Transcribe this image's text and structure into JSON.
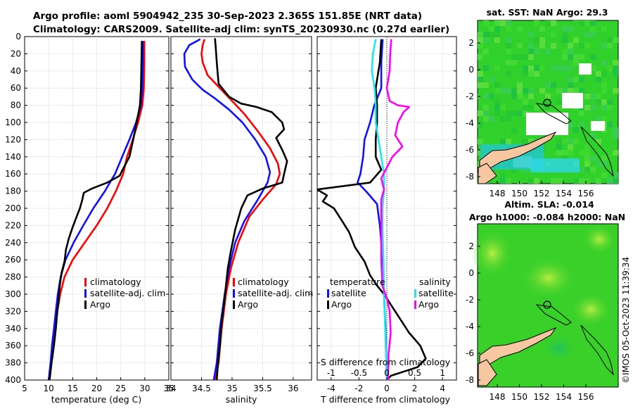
{
  "header": {
    "title_line1": "Argo profile: aoml 5904942_235 30-Sep-2023 2.365S 151.85E (NRT data)",
    "title_line2": "Climatology: CARS2009. Satellite-adj clim: synTS_20230930.nc (0.27d earlier)"
  },
  "colors": {
    "climatology": "#ff0000",
    "satellite": "#1010ff",
    "argo": "#000000",
    "sat_sal": "#20e8f0",
    "argo_sal": "#ff00ff"
  },
  "chart_data": [
    {
      "id": "temperature",
      "type": "line",
      "xlabel": "temperature (deg C)",
      "ylabel": "",
      "xlim": [
        5,
        35
      ],
      "ylim": [
        400,
        0
      ],
      "xticks": [
        5,
        10,
        15,
        20,
        25,
        30,
        35
      ],
      "xtick_labels": [
        "5",
        "10",
        "15",
        "20",
        "25",
        "30",
        "35"
      ],
      "yticks": [
        0,
        20,
        40,
        60,
        80,
        100,
        120,
        140,
        160,
        180,
        200,
        220,
        240,
        260,
        280,
        300,
        320,
        340,
        360,
        380,
        400
      ],
      "ytick_labels": [
        "0",
        "20",
        "40",
        "60",
        "80",
        "100",
        "120",
        "140",
        "160",
        "180",
        "200",
        "220",
        "240",
        "260",
        "280",
        "300",
        "320",
        "340",
        "360",
        "380",
        "400"
      ],
      "grid": true,
      "legend": {
        "position": "bottom-right",
        "entries": [
          "climatology",
          "satellite-adj. clim",
          "Argo"
        ]
      },
      "series": [
        {
          "name": "climatology",
          "color": "#ff0000",
          "points": [
            [
              29.9,
              5
            ],
            [
              29.9,
              30
            ],
            [
              29.8,
              60
            ],
            [
              29.5,
              80
            ],
            [
              28.6,
              100
            ],
            [
              27.5,
              120
            ],
            [
              26.3,
              140
            ],
            [
              25.5,
              160
            ],
            [
              24.0,
              180
            ],
            [
              22.2,
              200
            ],
            [
              20.0,
              220
            ],
            [
              17.5,
              240
            ],
            [
              15.0,
              260
            ],
            [
              13.3,
              280
            ],
            [
              12.4,
              300
            ],
            [
              11.8,
              320
            ],
            [
              11.3,
              340
            ],
            [
              10.9,
              360
            ],
            [
              10.5,
              380
            ],
            [
              10.0,
              400
            ]
          ]
        },
        {
          "name": "satellite-adj. clim",
          "color": "#1010ff",
          "points": [
            [
              29.6,
              5
            ],
            [
              29.6,
              30
            ],
            [
              29.5,
              60
            ],
            [
              29.2,
              80
            ],
            [
              28.2,
              100
            ],
            [
              26.8,
              120
            ],
            [
              25.3,
              140
            ],
            [
              23.8,
              160
            ],
            [
              21.7,
              180
            ],
            [
              19.3,
              200
            ],
            [
              17.2,
              220
            ],
            [
              15.2,
              240
            ],
            [
              13.5,
              260
            ],
            [
              12.5,
              280
            ],
            [
              11.9,
              300
            ],
            [
              11.5,
              320
            ],
            [
              11.1,
              340
            ],
            [
              10.7,
              360
            ],
            [
              10.4,
              380
            ],
            [
              10.0,
              400
            ]
          ]
        },
        {
          "name": "Argo",
          "color": "#000000",
          "points": [
            [
              29.4,
              5
            ],
            [
              29.3,
              30
            ],
            [
              29.2,
              60
            ],
            [
              29.0,
              80
            ],
            [
              28.3,
              100
            ],
            [
              27.6,
              120
            ],
            [
              26.8,
              140
            ],
            [
              25.4,
              155
            ],
            [
              24.8,
              162
            ],
            [
              22.2,
              170
            ],
            [
              19.0,
              177
            ],
            [
              17.3,
              182
            ],
            [
              17.0,
              190
            ],
            [
              16.5,
              200
            ],
            [
              15.8,
              210
            ],
            [
              15.0,
              222
            ],
            [
              14.2,
              235
            ],
            [
              13.6,
              248
            ],
            [
              13.3,
              262
            ],
            [
              12.7,
              275
            ],
            [
              12.3,
              290
            ],
            [
              12.1,
              305
            ],
            [
              11.8,
              320
            ],
            [
              11.5,
              340
            ],
            [
              11.1,
              360
            ],
            [
              10.6,
              380
            ],
            [
              10.2,
              400
            ]
          ]
        }
      ]
    },
    {
      "id": "salinity",
      "type": "line",
      "xlabel": "salinity",
      "xlim": [
        34,
        36.3
      ],
      "ylim": [
        400,
        0
      ],
      "xticks": [
        34,
        34.5,
        35,
        35.5,
        36
      ],
      "xtick_labels": [
        "34",
        "34.5",
        "35",
        "35.5",
        "36"
      ],
      "grid": true,
      "legend": {
        "position": "bottom-right",
        "entries": [
          "climatology",
          "satellite-adj. clim",
          "Argo"
        ]
      },
      "series": [
        {
          "name": "climatology",
          "color": "#ff0000",
          "points": [
            [
              34.55,
              3
            ],
            [
              34.52,
              10
            ],
            [
              34.5,
              20
            ],
            [
              34.52,
              30
            ],
            [
              34.6,
              45
            ],
            [
              34.8,
              60
            ],
            [
              35.0,
              75
            ],
            [
              35.2,
              90
            ],
            [
              35.42,
              110
            ],
            [
              35.62,
              130
            ],
            [
              35.75,
              148
            ],
            [
              35.78,
              160
            ],
            [
              35.72,
              172
            ],
            [
              35.5,
              190
            ],
            [
              35.28,
              210
            ],
            [
              35.1,
              240
            ],
            [
              34.98,
              270
            ],
            [
              34.9,
              300
            ],
            [
              34.83,
              340
            ],
            [
              34.78,
              380
            ],
            [
              34.72,
              400
            ]
          ]
        },
        {
          "name": "satellite-adj. clim",
          "color": "#1010ff",
          "points": [
            [
              34.48,
              3
            ],
            [
              34.3,
              10
            ],
            [
              34.22,
              20
            ],
            [
              34.23,
              35
            ],
            [
              34.35,
              50
            ],
            [
              34.52,
              62
            ],
            [
              34.72,
              72
            ],
            [
              34.95,
              85
            ],
            [
              35.17,
              100
            ],
            [
              35.38,
              120
            ],
            [
              35.55,
              140
            ],
            [
              35.62,
              158
            ],
            [
              35.58,
              170
            ],
            [
              35.42,
              190
            ],
            [
              35.2,
              215
            ],
            [
              35.05,
              240
            ],
            [
              34.95,
              270
            ],
            [
              34.88,
              300
            ],
            [
              34.8,
              340
            ],
            [
              34.75,
              380
            ],
            [
              34.7,
              400
            ]
          ]
        },
        {
          "name": "Argo",
          "color": "#000000",
          "points": [
            [
              34.72,
              2
            ],
            [
              34.73,
              10
            ],
            [
              34.75,
              30
            ],
            [
              34.78,
              55
            ],
            [
              34.95,
              70
            ],
            [
              35.15,
              78
            ],
            [
              35.4,
              82
            ],
            [
              35.65,
              88
            ],
            [
              35.82,
              100
            ],
            [
              35.85,
              108
            ],
            [
              35.72,
              118
            ],
            [
              35.82,
              132
            ],
            [
              35.9,
              145
            ],
            [
              35.85,
              160
            ],
            [
              35.82,
              170
            ],
            [
              35.5,
              177
            ],
            [
              35.25,
              185
            ],
            [
              35.15,
              200
            ],
            [
              35.05,
              225
            ],
            [
              34.98,
              250
            ],
            [
              34.93,
              270
            ],
            [
              34.9,
              290
            ],
            [
              34.87,
              310
            ],
            [
              34.82,
              340
            ],
            [
              34.8,
              360
            ],
            [
              34.77,
              380
            ],
            [
              34.75,
              400
            ]
          ]
        }
      ]
    },
    {
      "id": "differences",
      "type": "line",
      "xlabel": "T difference from climatology",
      "xlabel_top": "S difference from climatology",
      "xlim": [
        -5,
        5
      ],
      "ylim": [
        400,
        0
      ],
      "xticks": [
        -4,
        -2,
        0,
        2,
        4
      ],
      "xtick_labels": [
        "-4",
        "-2",
        "0",
        "2",
        "4"
      ],
      "top_xticks": [
        -1,
        -0.5,
        0,
        0.5,
        1
      ],
      "top_xtick_labels": [
        "-1",
        "-0.5",
        "0",
        "0.5",
        "1"
      ],
      "grid": true,
      "legend": {
        "position": "bottom",
        "temperature_title": "temperature",
        "salinity_title": "salinity",
        "entries_temperature": [
          "satellite",
          "Argo"
        ],
        "entries_salinity": [
          "satellite",
          "Argo"
        ]
      },
      "series": [
        {
          "name": "temperature satellite",
          "color": "#1010ff",
          "points": [
            [
              -0.3,
              3
            ],
            [
              -0.4,
              30
            ],
            [
              -0.4,
              60
            ],
            [
              -0.9,
              80
            ],
            [
              -1.2,
              100
            ],
            [
              -1.6,
              120
            ],
            [
              -1.7,
              140
            ],
            [
              -1.9,
              160
            ],
            [
              -2.1,
              170
            ],
            [
              -1.5,
              180
            ],
            [
              -0.7,
              195
            ],
            [
              -0.5,
              220
            ],
            [
              -0.3,
              260
            ],
            [
              -0.2,
              300
            ],
            [
              -0.1,
              340
            ],
            [
              0,
              400
            ]
          ]
        },
        {
          "name": "temperature Argo",
          "color": "#000000",
          "points": [
            [
              -0.4,
              3
            ],
            [
              -0.5,
              30
            ],
            [
              -0.8,
              60
            ],
            [
              -0.7,
              80
            ],
            [
              -0.7,
              100
            ],
            [
              -0.8,
              120
            ],
            [
              -0.8,
              140
            ],
            [
              -0.4,
              155
            ],
            [
              -1.2,
              170
            ],
            [
              -5.0,
              178
            ],
            [
              -4.3,
              185
            ],
            [
              -4.6,
              192
            ],
            [
              -3.8,
              200
            ],
            [
              -3.2,
              215
            ],
            [
              -2.7,
              228
            ],
            [
              -2.3,
              245
            ],
            [
              -1.6,
              262
            ],
            [
              -1.2,
              278
            ],
            [
              -0.7,
              290
            ],
            [
              -0.2,
              300
            ],
            [
              0.4,
              315
            ],
            [
              1.0,
              330
            ],
            [
              1.6,
              345
            ],
            [
              2.4,
              360
            ],
            [
              2.8,
              375
            ],
            [
              2.2,
              385
            ],
            [
              0.3,
              395
            ],
            [
              0,
              400
            ]
          ]
        },
        {
          "name": "salinity satellite",
          "color": "#20e8f0",
          "points": [
            [
              -0.2,
              3
            ],
            [
              -0.25,
              20
            ],
            [
              -0.27,
              40
            ],
            [
              -0.22,
              60
            ],
            [
              -0.2,
              80
            ],
            [
              -0.2,
              100
            ],
            [
              -0.15,
              120
            ],
            [
              -0.1,
              140
            ],
            [
              -0.05,
              160
            ],
            [
              -0.05,
              180
            ],
            [
              -0.08,
              200
            ],
            [
              -0.08,
              220
            ],
            [
              -0.06,
              260
            ],
            [
              -0.05,
              300
            ],
            [
              -0.03,
              340
            ],
            [
              0,
              400
            ]
          ]
        },
        {
          "name": "salinity Argo",
          "color": "#ff00ff",
          "points": [
            [
              0.08,
              3
            ],
            [
              0.06,
              20
            ],
            [
              0.05,
              40
            ],
            [
              0.0,
              60
            ],
            [
              0.05,
              75
            ],
            [
              0.2,
              80
            ],
            [
              0.4,
              82
            ],
            [
              0.3,
              88
            ],
            [
              0.2,
              100
            ],
            [
              0.15,
              115
            ],
            [
              0.28,
              128
            ],
            [
              0.1,
              140
            ],
            [
              -0.02,
              155
            ],
            [
              -0.1,
              165
            ],
            [
              -0.05,
              178
            ],
            [
              -0.1,
              190
            ],
            [
              -0.1,
              220
            ],
            [
              -0.1,
              260
            ],
            [
              -0.08,
              290
            ],
            [
              0.0,
              305
            ],
            [
              0.05,
              320
            ],
            [
              0.07,
              345
            ],
            [
              0.03,
              370
            ],
            [
              0.02,
              400
            ]
          ]
        }
      ]
    }
  ],
  "sst_map": {
    "title": "sat. SST: NaN Argo: 29.3",
    "xticks": [
      "148",
      "150",
      "152",
      "154",
      "156"
    ],
    "yticks": [
      "2",
      "0",
      "-2",
      "-4",
      "-6",
      "-8"
    ]
  },
  "sla_map": {
    "title_line1": "Altim. SLA: -0.014",
    "title_line2": "Argo h1000: -0.084 h2000: NaN",
    "xticks": [
      "148",
      "150",
      "152",
      "154",
      "156"
    ],
    "yticks": [
      "2",
      "0",
      "-2",
      "-4",
      "-6",
      "-8"
    ]
  },
  "credit": "©IMOS 05-Oct-2023 11:39:34"
}
